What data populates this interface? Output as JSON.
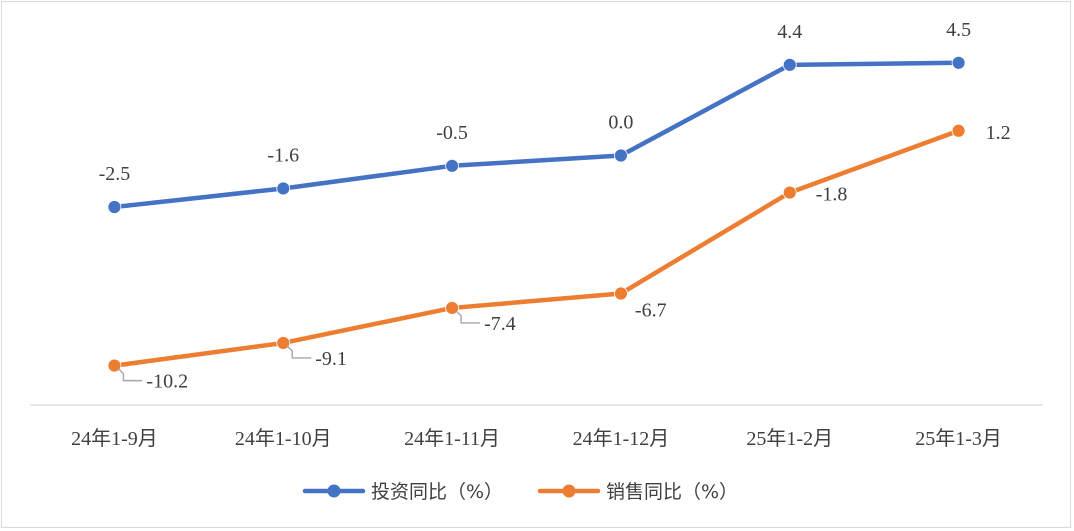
{
  "chart_data": {
    "type": "line",
    "categories": [
      "24年1-9月",
      "24年1-10月",
      "24年1-11月",
      "24年1-12月",
      "25年1-2月",
      "25年1-3月"
    ],
    "series": [
      {
        "name": "投资同比（%）",
        "color": "#4472c4",
        "values": [
          -2.5,
          -1.6,
          -0.5,
          0.0,
          4.4,
          4.5
        ],
        "labels": [
          "-2.5",
          "-1.6",
          "-0.5",
          "0.0",
          "4.4",
          "4.5"
        ]
      },
      {
        "name": "销售同比（%）",
        "color": "#ed7d31",
        "values": [
          -10.2,
          -9.1,
          -7.4,
          -6.7,
          -1.8,
          1.2
        ],
        "labels": [
          "-10.2",
          "-9.1",
          "-7.4",
          "-6.7",
          "-1.8",
          "1.2"
        ]
      }
    ],
    "title": "",
    "xlabel": "",
    "ylabel": "",
    "grid": false,
    "legend_position": "bottom",
    "leader_line_color": "#a6a6a6"
  }
}
